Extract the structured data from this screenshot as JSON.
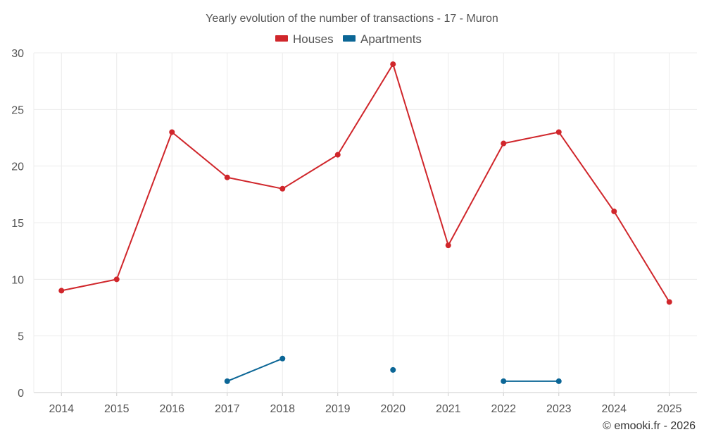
{
  "chart_data": {
    "type": "line",
    "title": "Yearly evolution of the number of transactions - 17 - Muron",
    "categories": [
      "2014",
      "2015",
      "2016",
      "2017",
      "2018",
      "2019",
      "2020",
      "2021",
      "2022",
      "2023",
      "2024",
      "2025"
    ],
    "ylim": [
      0,
      30
    ],
    "yticks": [
      0,
      5,
      10,
      15,
      20,
      25,
      30
    ],
    "grid": true,
    "legend_position": "top-center",
    "series": [
      {
        "name": "Houses",
        "color": "#d0262b",
        "values": [
          9,
          10,
          23,
          19,
          18,
          21,
          29,
          13,
          22,
          23,
          16,
          8
        ]
      },
      {
        "name": "Apartments",
        "color": "#0b6696",
        "values": [
          null,
          null,
          null,
          1,
          3,
          null,
          2,
          null,
          1,
          1,
          null,
          null
        ]
      }
    ],
    "credit": "© emooki.fr - 2026"
  }
}
